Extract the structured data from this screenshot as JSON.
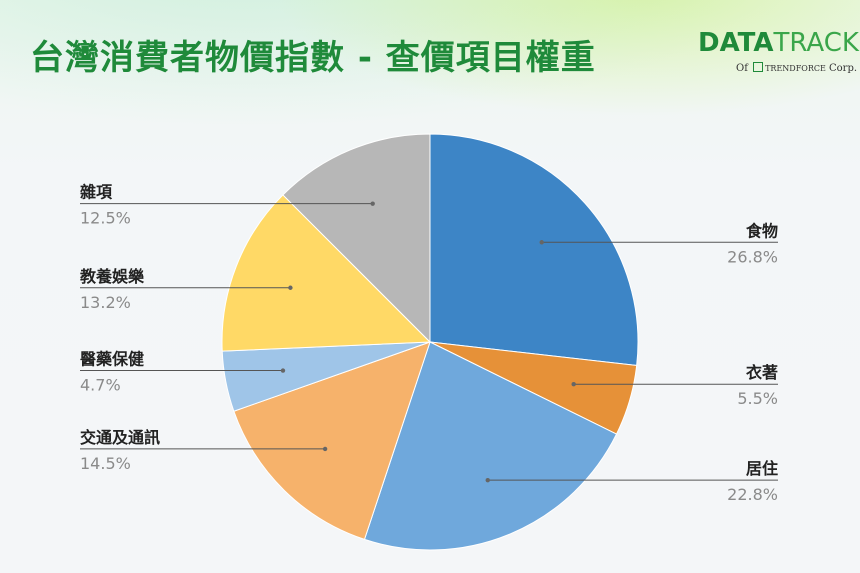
{
  "header": {
    "title": "台灣消費者物價指數 - 查價項目權重"
  },
  "logo": {
    "main_bold": "DATA",
    "main_light": "TRACK",
    "sub_prefix": "Of",
    "sub_brand": "TRENDFORCE",
    "sub_suffix": "Corp."
  },
  "chart_data": {
    "type": "pie",
    "slices": [
      {
        "label": "食物",
        "value": 26.8,
        "value_label": "26.8%",
        "color": "#3d85c6"
      },
      {
        "label": "衣著",
        "value": 5.5,
        "value_label": "5.5%",
        "color": "#e69138"
      },
      {
        "label": "居住",
        "value": 22.8,
        "value_label": "22.8%",
        "color": "#6fa8dc"
      },
      {
        "label": "交通及通訊",
        "value": 14.5,
        "value_label": "14.5%",
        "color": "#f6b26b"
      },
      {
        "label": "醫藥保健",
        "value": 4.7,
        "value_label": "4.7%",
        "color": "#9fc5e8"
      },
      {
        "label": "教養娛樂",
        "value": 13.2,
        "value_label": "13.2%",
        "color": "#ffd966"
      },
      {
        "label": "雜項",
        "value": 12.5,
        "value_label": "12.5%",
        "color": "#b7b7b7"
      }
    ],
    "start_angle": "12 o'clock",
    "direction": "clockwise",
    "labels": "outside-with-leader-lines"
  }
}
